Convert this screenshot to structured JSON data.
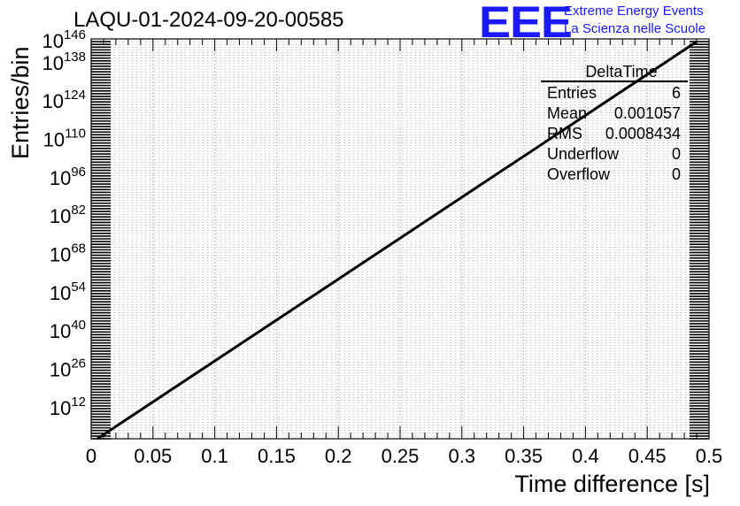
{
  "header": {
    "title": "LAQU-01-2024-09-20-00585",
    "logo_text": "EEE",
    "logo_line1": "Extreme Energy Events",
    "logo_line2": "La Scienza nelle Scuole"
  },
  "stats_box": {
    "name": "DeltaTime",
    "rows": [
      {
        "label": "Entries",
        "value": "6"
      },
      {
        "label": "Mean",
        "value": "0.001057"
      },
      {
        "label": "RMS",
        "value": "0.0008434"
      },
      {
        "label": "Underflow",
        "value": "0"
      },
      {
        "label": "Overflow",
        "value": "0"
      }
    ]
  },
  "colors": {
    "logo": "#1a1aff",
    "line": "#000000",
    "grid": "#bbbbbb"
  },
  "chart_data": {
    "type": "line",
    "xlabel": "Time difference [s]",
    "ylabel": "Entries/bin",
    "xlim": [
      0,
      0.5
    ],
    "ylim_log10": [
      0,
      146
    ],
    "yscale": "log",
    "grid": true,
    "x_ticks": [
      "0",
      "0.05",
      "0.1",
      "0.15",
      "0.2",
      "0.25",
      "0.3",
      "0.35",
      "0.4",
      "0.45",
      "0.5"
    ],
    "y_ticks": [
      {
        "base": "10",
        "exp": "12"
      },
      {
        "base": "10",
        "exp": "26"
      },
      {
        "base": "10",
        "exp": "40"
      },
      {
        "base": "10",
        "exp": "54"
      },
      {
        "base": "10",
        "exp": "68"
      },
      {
        "base": "10",
        "exp": "82"
      },
      {
        "base": "10",
        "exp": "96"
      },
      {
        "base": "10",
        "exp": "110"
      },
      {
        "base": "10",
        "exp": "124"
      },
      {
        "base": "10",
        "exp": "138"
      },
      {
        "base": "10",
        "exp": "146"
      }
    ],
    "y_tick_exponents": [
      12,
      26,
      40,
      54,
      68,
      82,
      96,
      110,
      124,
      138,
      146
    ],
    "series": [
      {
        "x": [
          0.005,
          0.49
        ],
        "y_log10": [
          0,
          145
        ]
      }
    ]
  }
}
